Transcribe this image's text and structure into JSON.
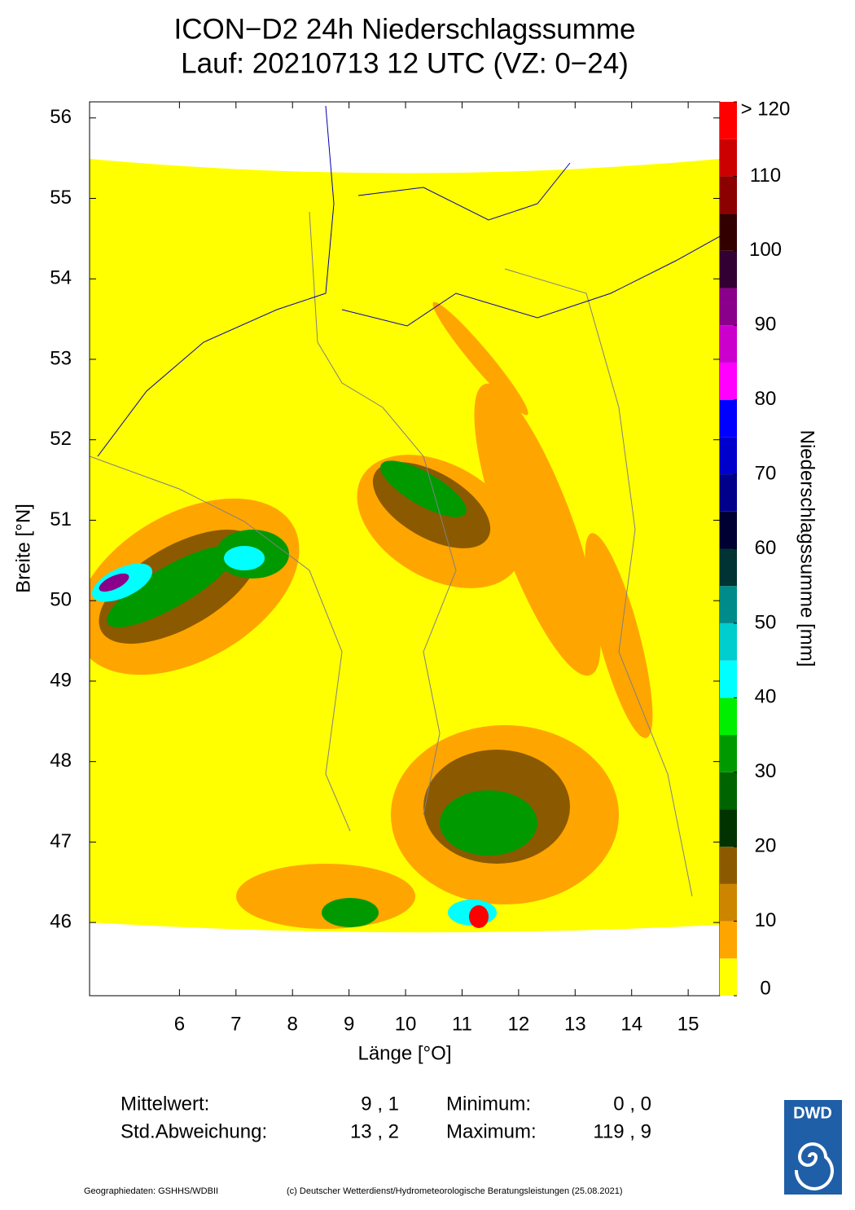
{
  "title": [
    "ICON−D2 24h Niederschlagssumme",
    "Lauf: 20210713 12 UTC (VZ: 0−24)"
  ],
  "map": {
    "xlabel": "Länge [°O]",
    "ylabel": "Breite [°N]",
    "xlim": [
      4.41,
      15.56
    ],
    "ylim": [
      45.09,
      56.2
    ],
    "xticks": [
      6,
      7,
      8,
      9,
      10,
      11,
      12,
      13,
      14,
      15
    ],
    "yticks": [
      46,
      47,
      48,
      49,
      50,
      51,
      52,
      53,
      54,
      55,
      56
    ]
  },
  "colorbar": {
    "label": "Niederschlagssumme [mm]",
    "levels": [
      0,
      5,
      10,
      15,
      20,
      25,
      30,
      35,
      40,
      45,
      50,
      55,
      60,
      65,
      70,
      75,
      80,
      85,
      90,
      95,
      100,
      105,
      110,
      115,
      120
    ],
    "colors": [
      "#ffff00",
      "#ffa500",
      "#cd8500",
      "#8b5a00",
      "#003300",
      "#006400",
      "#009900",
      "#00ee00",
      "#00ffff",
      "#00cdcd",
      "#008b8b",
      "#003333",
      "#000033",
      "#00008b",
      "#0000cd",
      "#0000ff",
      "#ff00ff",
      "#cc00cc",
      "#8b008b",
      "#330033",
      "#330000",
      "#8b0000",
      "#cc0000",
      "#ff0000"
    ],
    "ticks": [
      0,
      10,
      20,
      30,
      40,
      50,
      60,
      70,
      80,
      90,
      100,
      110,
      {
        "value": 120,
        "label": "> 120"
      }
    ]
  },
  "stats": [
    {
      "label": "Mittelwert:",
      "value": "9 , 1"
    },
    {
      "label": "Minimum:",
      "value": "0 , 0"
    },
    {
      "label": "Std.Abweichung:",
      "value": "13 , 2"
    },
    {
      "label": "Maximum:",
      "value": "119 , 9"
    }
  ],
  "logo": "DWD",
  "footer": [
    "Geographiedaten: GSHHS/WDBII",
    "(c) Deutscher Wetterdienst/Hydrometeorologische Beratungsleistungen (25.08.2021)"
  ]
}
